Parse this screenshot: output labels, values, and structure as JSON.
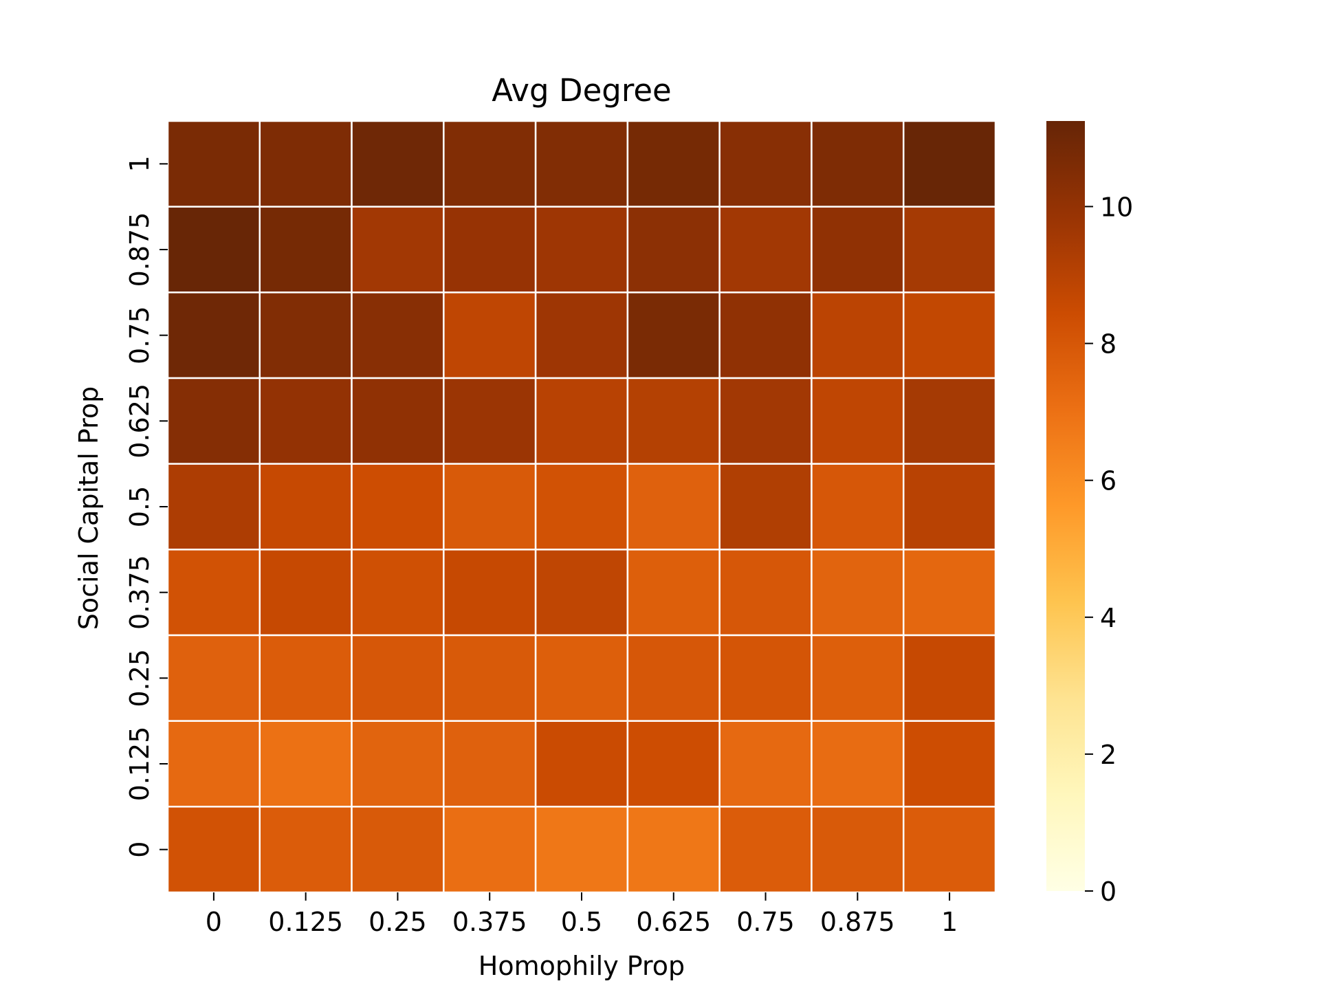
{
  "chart_data": {
    "type": "heatmap",
    "title": "Avg Degree",
    "xlabel": "Homophily Prop",
    "ylabel": "Social Capital Prop",
    "x_categories": [
      "0",
      "0.125",
      "0.25",
      "0.375",
      "0.5",
      "0.625",
      "0.75",
      "0.875",
      "1"
    ],
    "y_categories": [
      "1",
      "0.875",
      "0.75",
      "0.625",
      "0.5",
      "0.375",
      "0.25",
      "0.125",
      "0"
    ],
    "values": [
      [
        10.7,
        10.6,
        11.0,
        10.5,
        10.5,
        10.8,
        10.3,
        10.6,
        11.2
      ],
      [
        11.2,
        10.8,
        9.6,
        9.9,
        9.7,
        10.2,
        9.6,
        10.1,
        9.5
      ],
      [
        11.0,
        10.5,
        10.3,
        8.8,
        9.7,
        10.7,
        10.1,
        8.9,
        8.7
      ],
      [
        10.4,
        10.0,
        10.1,
        9.8,
        9.0,
        9.1,
        9.6,
        8.8,
        9.5
      ],
      [
        9.3,
        8.6,
        8.4,
        7.9,
        8.2,
        7.6,
        9.2,
        8.0,
        9.0
      ],
      [
        8.2,
        8.6,
        8.3,
        8.6,
        8.8,
        7.7,
        8.0,
        7.5,
        7.4
      ],
      [
        7.6,
        7.8,
        8.0,
        7.9,
        7.7,
        8.0,
        8.1,
        7.7,
        8.6
      ],
      [
        7.3,
        7.0,
        7.5,
        7.6,
        8.5,
        8.4,
        7.3,
        7.2,
        8.4
      ],
      [
        8.2,
        7.8,
        7.9,
        7.1,
        6.8,
        6.8,
        7.8,
        7.9,
        7.8
      ]
    ],
    "colorbar": {
      "min": 0,
      "max": 11.25,
      "ticks": [
        0,
        2,
        4,
        6,
        8,
        10
      ],
      "tick_labels": [
        "0",
        "2",
        "4",
        "6",
        "8",
        "10"
      ],
      "colormap": [
        "#ffffe5",
        "#fff7bc",
        "#fee391",
        "#fec44f",
        "#fe9929",
        "#ec7014",
        "#cc4c02",
        "#993404",
        "#662506"
      ]
    },
    "grid": false,
    "cell_border_color": "#ffffff"
  }
}
